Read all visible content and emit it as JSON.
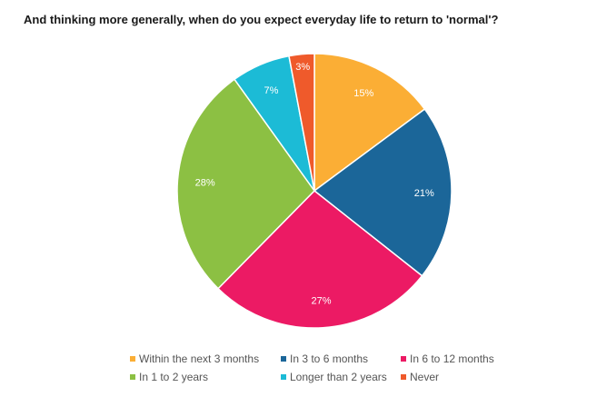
{
  "chart_data": {
    "type": "pie",
    "title": "And thinking more generally, when do you expect everyday life to return to 'normal'?",
    "slices": [
      {
        "name": "Within the next 3 months",
        "value": 15,
        "label": "15%",
        "color": "#FBAE35"
      },
      {
        "name": "In 3 to 6 months",
        "value": 21,
        "label": "21%",
        "color": "#1B6699"
      },
      {
        "name": "In 6 to 12 months",
        "value": 27,
        "label": "27%",
        "color": "#EC1A64"
      },
      {
        "name": "In 1 to 2 years",
        "value": 28,
        "label": "28%",
        "color": "#8CC043"
      },
      {
        "name": "Longer than 2 years",
        "value": 7,
        "label": "7%",
        "color": "#1CBBD6"
      },
      {
        "name": "Never",
        "value": 3,
        "label": "3%",
        "color": "#EF5A2B"
      }
    ],
    "legend_position": "bottom"
  }
}
